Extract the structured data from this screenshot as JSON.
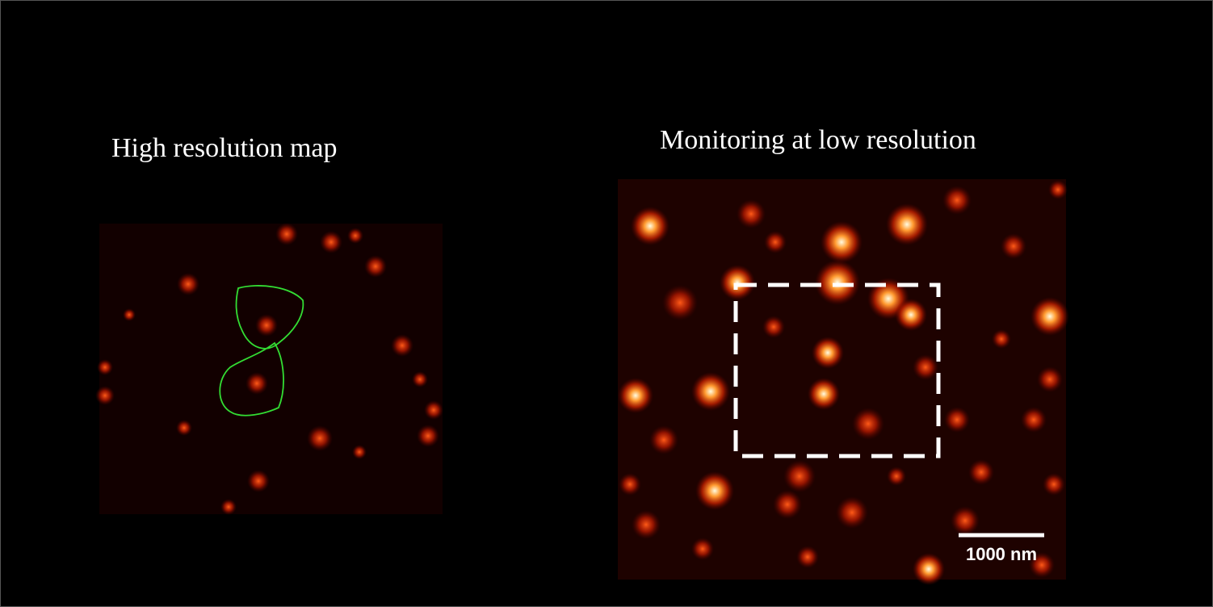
{
  "left_panel": {
    "title": "High resolution map"
  },
  "right_panel": {
    "title": "Monitoring  at low resolution",
    "scale_bar": "1000 nm"
  }
}
